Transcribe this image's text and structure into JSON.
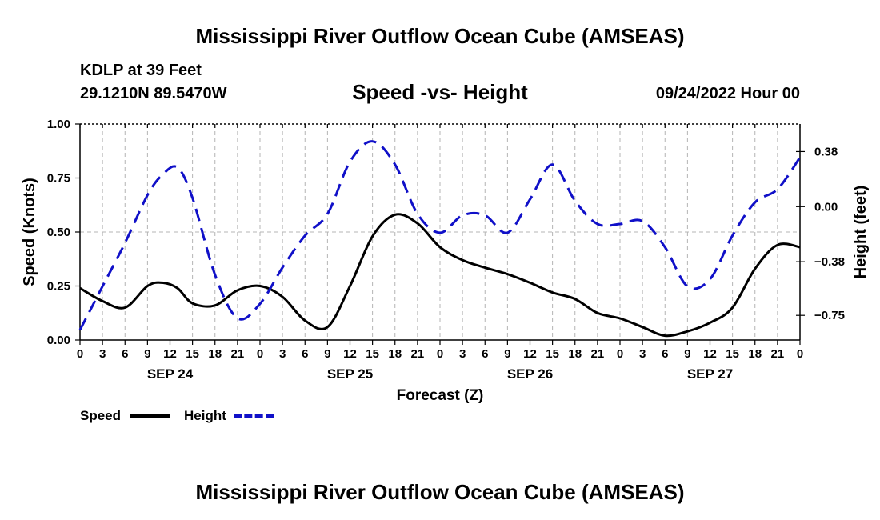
{
  "header": {
    "title": "Mississippi River Outflow Ocean Cube (AMSEAS)",
    "station": "KDLP at 39 Feet",
    "coords": "29.1210N  89.5470W",
    "subtitle": "Speed -vs- Height",
    "issued": "09/24/2022 Hour 00"
  },
  "footer": {
    "title": "Mississippi River Outflow Ocean Cube (AMSEAS)"
  },
  "legend": {
    "speed_label": "Speed",
    "height_label": "Height"
  },
  "chart_data": {
    "type": "line",
    "xlabel": "Forecast (Z)",
    "ylabel": "Speed (Knots)",
    "y2label": "Height (feet)",
    "xlim": [
      0,
      96
    ],
    "ylim": [
      0,
      1.0
    ],
    "y2lim": [
      -0.92,
      0.57
    ],
    "x_tick_hours": [
      0,
      3,
      6,
      9,
      12,
      15,
      18,
      21,
      24,
      27,
      30,
      33,
      36,
      39,
      42,
      45,
      48,
      51,
      54,
      57,
      60,
      63,
      66,
      69,
      72,
      75,
      78,
      81,
      84,
      87,
      90,
      93,
      96
    ],
    "x_tick_labels": [
      "0",
      "3",
      "6",
      "9",
      "12",
      "15",
      "18",
      "21",
      "0",
      "3",
      "6",
      "9",
      "12",
      "15",
      "18",
      "21",
      "0",
      "3",
      "6",
      "9",
      "12",
      "15",
      "18",
      "21",
      "0",
      "3",
      "6",
      "9",
      "12",
      "15",
      "18",
      "21",
      "0"
    ],
    "date_labels": [
      {
        "hour": 12,
        "label": "SEP 24"
      },
      {
        "hour": 36,
        "label": "SEP 25"
      },
      {
        "hour": 60,
        "label": "SEP 26"
      },
      {
        "hour": 84,
        "label": "SEP 27"
      }
    ],
    "y_ticks": [
      0.0,
      0.25,
      0.5,
      0.75,
      1.0
    ],
    "y_tick_labels": [
      "0.00",
      "0.25",
      "0.50",
      "0.75",
      "1.00"
    ],
    "y2_ticks": [
      -0.75,
      -0.38,
      0.0,
      0.38
    ],
    "y2_tick_labels": [
      "−0.75",
      "−0.38",
      "0.00",
      "0.38"
    ],
    "grid": true,
    "series": [
      {
        "name": "Speed",
        "axis": "left",
        "color": "#000000",
        "style": "solid",
        "x": [
          0,
          3,
          6,
          9,
          11,
          13,
          15,
          18,
          21,
          24,
          27,
          30,
          33,
          36,
          39,
          42,
          45,
          48,
          51,
          54,
          57,
          60,
          63,
          66,
          69,
          72,
          75,
          78,
          81,
          84,
          87,
          90,
          93,
          96
        ],
        "y": [
          0.24,
          0.18,
          0.15,
          0.25,
          0.265,
          0.24,
          0.17,
          0.16,
          0.23,
          0.25,
          0.2,
          0.09,
          0.06,
          0.25,
          0.48,
          0.58,
          0.54,
          0.43,
          0.37,
          0.335,
          0.305,
          0.265,
          0.22,
          0.19,
          0.125,
          0.1,
          0.06,
          0.02,
          0.04,
          0.08,
          0.15,
          0.33,
          0.44,
          0.43
        ]
      },
      {
        "name": "Height",
        "axis": "right",
        "color": "#1010c8",
        "style": "dashed",
        "x": [
          0,
          3,
          6,
          9,
          11,
          13,
          15,
          18,
          21,
          24,
          27,
          30,
          33,
          36,
          39,
          42,
          45,
          48,
          51,
          54,
          57,
          60,
          63,
          66,
          69,
          72,
          75,
          78,
          81,
          84,
          87,
          90,
          93,
          96
        ],
        "y": [
          -0.85,
          -0.55,
          -0.25,
          0.08,
          0.22,
          0.27,
          0.06,
          -0.47,
          -0.77,
          -0.67,
          -0.42,
          -0.2,
          -0.05,
          0.31,
          0.45,
          0.29,
          -0.05,
          -0.18,
          -0.06,
          -0.06,
          -0.18,
          0.05,
          0.29,
          0.04,
          -0.12,
          -0.12,
          -0.1,
          -0.28,
          -0.55,
          -0.5,
          -0.2,
          0.03,
          0.12,
          0.34
        ]
      }
    ]
  }
}
